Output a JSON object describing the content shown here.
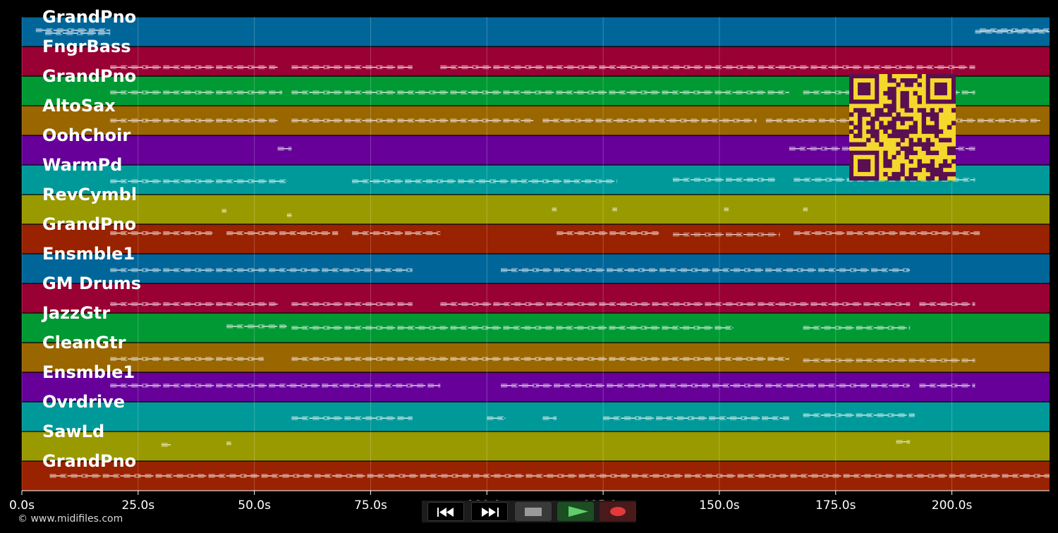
{
  "chart_data": {
    "type": "piano-roll",
    "xlim": [
      0,
      221
    ],
    "x_ticks": [
      0,
      25,
      50,
      75,
      100,
      125,
      150,
      175,
      200
    ],
    "x_tick_labels": [
      "0.0s",
      "25.0s",
      "50.0s",
      "75.0s",
      "100.0s",
      "125.0s",
      "150.0s",
      "175.0s",
      "200.0s"
    ],
    "tracks": [
      {
        "name": "GrandPno",
        "color": "#006699",
        "notes": [
          [
            3,
            19,
            0.45
          ],
          [
            5,
            19,
            0.55
          ],
          [
            205,
            221,
            0.5
          ],
          [
            206,
            221,
            0.45
          ]
        ]
      },
      {
        "name": "FngrBass",
        "color": "#990033",
        "notes": [
          [
            19,
            55,
            0.7
          ],
          [
            58,
            84,
            0.7
          ],
          [
            90,
            205,
            0.7
          ]
        ]
      },
      {
        "name": "GrandPno",
        "color": "#009933",
        "notes": [
          [
            19,
            56,
            0.55
          ],
          [
            58,
            165,
            0.55
          ],
          [
            168,
            205,
            0.55
          ]
        ]
      },
      {
        "name": "AltoSax",
        "color": "#996600",
        "notes": [
          [
            19,
            55,
            0.5
          ],
          [
            58,
            110,
            0.5
          ],
          [
            112,
            158,
            0.5
          ],
          [
            160,
            219,
            0.5
          ]
        ]
      },
      {
        "name": "OohChoir",
        "color": "#660099",
        "notes": [
          [
            55,
            58,
            0.45
          ],
          [
            165,
            205,
            0.45
          ]
        ]
      },
      {
        "name": "WarmPd",
        "color": "#009999",
        "notes": [
          [
            19,
            57,
            0.55
          ],
          [
            71,
            128,
            0.55
          ],
          [
            140,
            162,
            0.5
          ],
          [
            166,
            205,
            0.5
          ]
        ]
      },
      {
        "name": "RevCymbl",
        "color": "#999900",
        "notes": [
          [
            43,
            44,
            0.55
          ],
          [
            57,
            58,
            0.7
          ],
          [
            114,
            115,
            0.5
          ],
          [
            127,
            128,
            0.5
          ],
          [
            151,
            152,
            0.5
          ],
          [
            168,
            169,
            0.5
          ]
        ]
      },
      {
        "name": "GrandPno",
        "color": "#992200",
        "notes": [
          [
            19,
            41,
            0.3
          ],
          [
            44,
            68,
            0.3
          ],
          [
            71,
            90,
            0.3
          ],
          [
            115,
            137,
            0.3
          ],
          [
            140,
            163,
            0.35
          ],
          [
            166,
            206,
            0.3
          ]
        ]
      },
      {
        "name": "Ensmble1",
        "color": "#006699",
        "notes": [
          [
            19,
            84,
            0.55
          ],
          [
            103,
            191,
            0.55
          ]
        ]
      },
      {
        "name": "GM Drums",
        "color": "#990033",
        "notes": [
          [
            19,
            55,
            0.7
          ],
          [
            58,
            84,
            0.7
          ],
          [
            90,
            191,
            0.7
          ],
          [
            193,
            205,
            0.7
          ]
        ]
      },
      {
        "name": "JazzGtr",
        "color": "#009933",
        "notes": [
          [
            44,
            57,
            0.45
          ],
          [
            58,
            153,
            0.5
          ],
          [
            168,
            191,
            0.5
          ]
        ]
      },
      {
        "name": "CleanGtr",
        "color": "#996600",
        "notes": [
          [
            19,
            52,
            0.55
          ],
          [
            58,
            165,
            0.55
          ],
          [
            168,
            205,
            0.6
          ]
        ]
      },
      {
        "name": "Ensmble1",
        "color": "#660099",
        "notes": [
          [
            19,
            90,
            0.45
          ],
          [
            103,
            191,
            0.45
          ],
          [
            193,
            205,
            0.45
          ]
        ]
      },
      {
        "name": "Ovrdrive",
        "color": "#009999",
        "notes": [
          [
            58,
            84,
            0.55
          ],
          [
            100,
            104,
            0.55
          ],
          [
            112,
            115,
            0.55
          ],
          [
            125,
            165,
            0.55
          ],
          [
            168,
            192,
            0.45
          ]
        ]
      },
      {
        "name": "SawLd",
        "color": "#999900",
        "notes": [
          [
            30,
            32,
            0.45
          ],
          [
            44,
            45,
            0.4
          ],
          [
            188,
            191,
            0.35
          ]
        ]
      },
      {
        "name": "GrandPno",
        "color": "#992200",
        "notes": [
          [
            6,
            221,
            0.5
          ]
        ]
      }
    ]
  },
  "footer": {
    "credit": "© www.midifiles.com"
  },
  "transport": {
    "buttons": [
      {
        "name": "rewind-button",
        "icon": "rewind-icon"
      },
      {
        "name": "fast-forward-button",
        "icon": "fast-forward-icon"
      },
      {
        "name": "stop-button",
        "icon": "stop-icon"
      },
      {
        "name": "play-button",
        "icon": "play-icon"
      },
      {
        "name": "record-button",
        "icon": "record-icon"
      }
    ]
  }
}
